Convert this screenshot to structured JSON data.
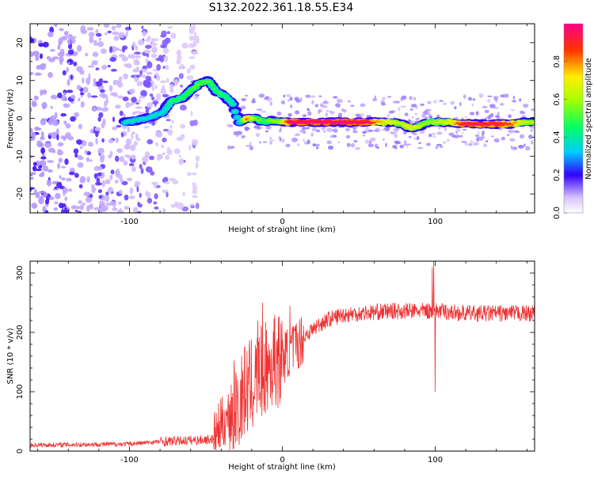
{
  "title": "S132.2022.361.18.55.E34",
  "chart_data": [
    {
      "type": "heatmap",
      "xlabel": "Height of straight line (km)",
      "ylabel": "Frequency (Hz)",
      "xlim": [
        -165,
        165
      ],
      "ylim": [
        -25,
        25
      ],
      "xticks": [
        -100,
        0,
        100
      ],
      "yticks": [
        -20,
        -10,
        0,
        10,
        20
      ],
      "colorbar": {
        "label": "Normalized spectral amplitude",
        "range": [
          0,
          1
        ],
        "ticks": [
          "0.0",
          "0.2",
          "0.4",
          "0.6",
          "0.8"
        ],
        "tick_values": [
          0.0,
          0.2,
          0.4,
          0.6,
          0.8
        ]
      },
      "ridge": {
        "x": [
          -103,
          -95,
          -85,
          -78,
          -73,
          -65,
          -58,
          -53,
          -48,
          -43,
          -38,
          -33,
          -28,
          -24,
          -18,
          -12,
          -7,
          -2,
          5,
          15,
          25,
          35,
          45,
          55,
          62,
          70,
          78,
          84,
          90,
          96,
          102,
          110,
          118,
          126,
          134,
          142,
          150,
          158,
          165
        ],
        "y": [
          -1,
          -0.5,
          0.5,
          1.5,
          4.5,
          5.5,
          8,
          9.5,
          10,
          7,
          6,
          4,
          -1,
          0,
          0,
          -1,
          -0.5,
          -1,
          -1,
          -1,
          -1,
          -1,
          -1,
          -1,
          -1,
          -1,
          -1.5,
          -2.5,
          -2,
          -1,
          -1,
          -1,
          -1.5,
          -1.5,
          -1.5,
          -1.5,
          -1.5,
          -1,
          -1
        ],
        "amplitude": [
          0.35,
          0.35,
          0.35,
          0.35,
          0.45,
          0.45,
          0.5,
          0.5,
          0.5,
          0.45,
          0.45,
          0.4,
          0.35,
          0.8,
          0.55,
          0.45,
          0.55,
          0.55,
          0.95,
          0.95,
          0.95,
          0.95,
          0.95,
          0.95,
          0.75,
          0.65,
          0.6,
          0.7,
          0.6,
          0.55,
          0.6,
          0.65,
          0.9,
          0.9,
          0.9,
          0.9,
          0.8,
          0.6,
          0.6
        ]
      }
    },
    {
      "type": "line",
      "xlabel": "Height of straight line (km)",
      "ylabel": "SNR (10 * v/v)",
      "xlim": [
        -165,
        165
      ],
      "ylim": [
        0,
        320
      ],
      "xticks": [
        -100,
        0,
        100
      ],
      "yticks": [
        0,
        100,
        200,
        300
      ],
      "line_color": "#ee3333",
      "trend": {
        "x": [
          -165,
          -100,
          -80,
          -60,
          -45,
          -40,
          -35,
          -30,
          -25,
          -20,
          -15,
          -10,
          -5,
          0,
          5,
          10,
          15,
          20,
          25,
          30,
          40,
          50,
          60,
          70,
          80,
          90,
          95,
          98,
          100,
          102,
          110,
          120,
          130,
          140,
          150,
          165
        ],
        "y": [
          10,
          12,
          16,
          18,
          20,
          45,
          60,
          80,
          100,
          110,
          130,
          140,
          150,
          155,
          170,
          180,
          195,
          205,
          215,
          222,
          230,
          232,
          234,
          236,
          236,
          236,
          236,
          236,
          236,
          236,
          234,
          232,
          232,
          232,
          232,
          232
        ]
      },
      "spikes": {
        "x": [
          -28,
          -16,
          -13,
          -5,
          5,
          98,
          99,
          100
        ],
        "y": [
          40,
          220,
          250,
          230,
          245,
          310,
          320,
          100
        ]
      }
    }
  ]
}
